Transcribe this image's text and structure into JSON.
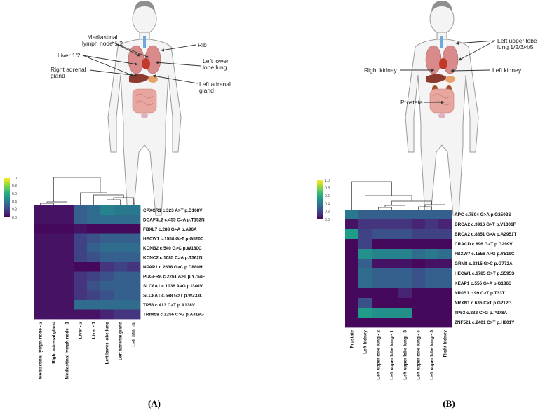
{
  "panel_a": {
    "label": "(A)",
    "callouts": [
      "Mediastinal\nlymph node 1/2",
      "Rib",
      "Liver 1/2",
      "Left lower\nlobe lung",
      "Right adrenal\ngland",
      "Left adrenal\ngland"
    ]
  },
  "panel_b": {
    "label": "(B)",
    "callouts": [
      "Left upper lobe\nlung 1/2/3/4/5",
      "Right kidney",
      "Left kidney",
      "Prostate"
    ]
  },
  "colors": {
    "viridis": [
      "#440154",
      "#482878",
      "#3e4989",
      "#31688e",
      "#26828e",
      "#1f9e89",
      "#35b779",
      "#6ece58",
      "#b5de2b",
      "#fde725"
    ],
    "line": "#333333",
    "body_outline": "#9a9a9a"
  },
  "chart_data": [
    {
      "type": "heatmap",
      "colorbar": {
        "min": 0.0,
        "max": 1.0,
        "ticks": [
          "1.0",
          "0.8",
          "0.6",
          "0.4",
          "0.2",
          "0.0"
        ]
      },
      "columns": [
        "Mediastinal lymph node - 2",
        "Right adrenal gland",
        "Mediastinal lymph node - 1",
        "Liver - 2",
        "Liver - 1",
        "Left lower lobe lung",
        "Left adrenal gland",
        "Left fifth rib"
      ],
      "rows": [
        "CPXCR1 c.323 A>T p.D108V",
        "DCAF4L2 c.455 C>A p.T152N",
        "FBXL7 c.288 G>A p.A96A",
        "HECW1 c.1558 G>T p.G520C",
        "KCNB2 c.540 G>C p.W180C",
        "KCNC2 c.1085 C>A p.T362N",
        "NPAP1 c.2638 G>C p.D880H",
        "PDGFRA c.2261 A>T p.Y754F",
        "SLC8A1 c.1036 A>G p.I346V",
        "SLC8A1 c.698 G>T p.W233L",
        "TP53 c.413 C>T p.A138V",
        "TRIM58 c.1256 C>G p.A419G"
      ],
      "values": [
        [
          0.05,
          0.05,
          0.05,
          0.3,
          0.35,
          0.45,
          0.4,
          0.4
        ],
        [
          0.05,
          0.05,
          0.05,
          0.3,
          0.35,
          0.35,
          0.35,
          0.35
        ],
        [
          0.02,
          0.02,
          0.02,
          0.05,
          0.02,
          0.02,
          0.02,
          0.02
        ],
        [
          0.05,
          0.05,
          0.05,
          0.2,
          0.25,
          0.3,
          0.3,
          0.3
        ],
        [
          0.05,
          0.05,
          0.05,
          0.2,
          0.3,
          0.35,
          0.35,
          0.35
        ],
        [
          0.05,
          0.05,
          0.05,
          0.2,
          0.25,
          0.3,
          0.3,
          0.3
        ],
        [
          0.05,
          0.05,
          0.05,
          0.02,
          0.02,
          0.15,
          0.2,
          0.15
        ],
        [
          0.05,
          0.05,
          0.05,
          0.15,
          0.2,
          0.25,
          0.3,
          0.3
        ],
        [
          0.05,
          0.05,
          0.05,
          0.15,
          0.25,
          0.3,
          0.3,
          0.3
        ],
        [
          0.05,
          0.05,
          0.05,
          0.15,
          0.2,
          0.25,
          0.3,
          0.3
        ],
        [
          0.05,
          0.05,
          0.05,
          0.35,
          0.35,
          0.35,
          0.35,
          0.35
        ],
        [
          0.05,
          0.05,
          0.05,
          0.05,
          0.05,
          0.1,
          0.15,
          0.15
        ]
      ]
    },
    {
      "type": "heatmap",
      "colorbar": {
        "min": 0.0,
        "max": 1.0,
        "ticks": [
          "1.0",
          "0.8",
          "0.6",
          "0.4",
          "0.2",
          "0.0"
        ]
      },
      "columns": [
        "Prostate",
        "Left kidney",
        "Left upper lobe lung - 2",
        "Left upper lobe lung - 1",
        "Left upper lobe lung - 3",
        "Left upper lobe lung - 4",
        "Left upper lobe lung - 5",
        "Right kidney"
      ],
      "rows": [
        "APC c.7504 G>A p.G2502S",
        "BRCA2 c.3916 G>T p.V1306F",
        "BRCA2 c.8851 G>A p.A2951T",
        "CRACD c.896 G>T p.G299V",
        "FBXW7 c.1556 A>G p.Y519C",
        "GRM8 c.2315 G>C p.G772A",
        "HECW1 c.1785 G>T p.S595S",
        "KEAP1 c.556 G>A p.G186S",
        "NR0B1 c.99 C>T p.T33T",
        "NRXN1 c.636 C>T p.G212G",
        "TP53 c.832 C>G p.P278A",
        "ZNF521 c.2401 C>T p.H801Y"
      ],
      "values": [
        [
          0.4,
          0.3,
          0.3,
          0.3,
          0.3,
          0.3,
          0.3,
          0.3
        ],
        [
          0.05,
          0.15,
          0.15,
          0.15,
          0.15,
          0.1,
          0.15,
          0.1
        ],
        [
          0.55,
          0.2,
          0.25,
          0.25,
          0.25,
          0.2,
          0.2,
          0.2
        ],
        [
          0.02,
          0.2,
          0.02,
          0.02,
          0.02,
          0.02,
          0.02,
          0.02
        ],
        [
          0.02,
          0.5,
          0.45,
          0.45,
          0.45,
          0.35,
          0.4,
          0.35
        ],
        [
          0.02,
          0.3,
          0.05,
          0.05,
          0.05,
          0.02,
          0.05,
          0.05
        ],
        [
          0.02,
          0.35,
          0.3,
          0.3,
          0.3,
          0.25,
          0.3,
          0.3
        ],
        [
          0.02,
          0.35,
          0.3,
          0.3,
          0.3,
          0.25,
          0.3,
          0.3
        ],
        [
          0.02,
          0.02,
          0.02,
          0.02,
          0.1,
          0.02,
          0.02,
          0.02
        ],
        [
          0.02,
          0.25,
          0.02,
          0.02,
          0.02,
          0.02,
          0.02,
          0.02
        ],
        [
          0.02,
          0.55,
          0.5,
          0.5,
          0.5,
          0.02,
          0.02,
          0.02
        ],
        [
          0.02,
          0.02,
          0.02,
          0.02,
          0.02,
          0.02,
          0.02,
          0.02
        ]
      ]
    }
  ]
}
